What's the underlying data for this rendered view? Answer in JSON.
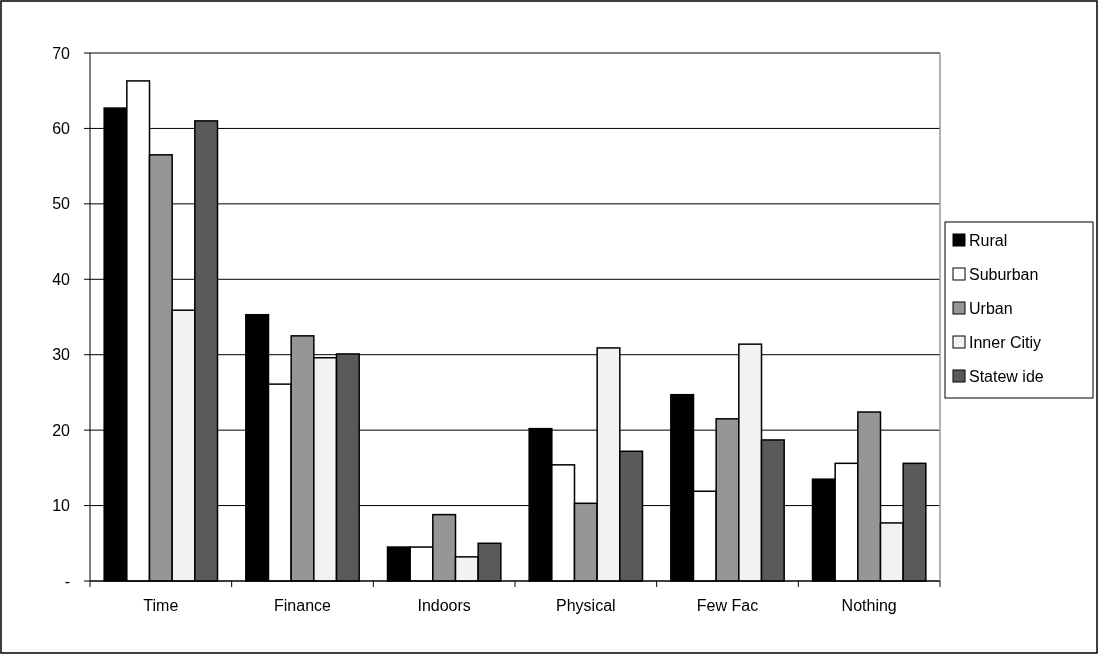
{
  "chart_data": {
    "type": "bar",
    "categories": [
      "Time",
      "Finance",
      "Indoors",
      "Physical",
      "Few Fac",
      "Nothing"
    ],
    "series": [
      {
        "name": "Rural",
        "color": "#000000",
        "values": [
          62.7,
          35.3,
          4.5,
          20.2,
          24.7,
          13.5
        ]
      },
      {
        "name": "Suburban",
        "color": "#ffffff",
        "values": [
          66.3,
          26.1,
          4.5,
          15.4,
          11.9,
          15.6
        ]
      },
      {
        "name": "Urban",
        "color": "#969696",
        "values": [
          56.5,
          32.5,
          8.8,
          10.3,
          21.5,
          22.4
        ]
      },
      {
        "name": "Inner Citiy",
        "color": "#f2f2f2",
        "values": [
          35.9,
          29.6,
          3.2,
          30.9,
          31.4,
          7.7
        ]
      },
      {
        "name": "Statew ide",
        "color": "#5a5a5a",
        "values": [
          61.0,
          30.1,
          5.0,
          17.2,
          18.7,
          15.6
        ]
      }
    ],
    "ylim": [
      0,
      70
    ],
    "yticks": [
      {
        "value": 0,
        "label": "-"
      },
      10,
      20,
      30,
      40,
      50,
      60,
      70
    ],
    "grid": "y",
    "legend": "right"
  }
}
